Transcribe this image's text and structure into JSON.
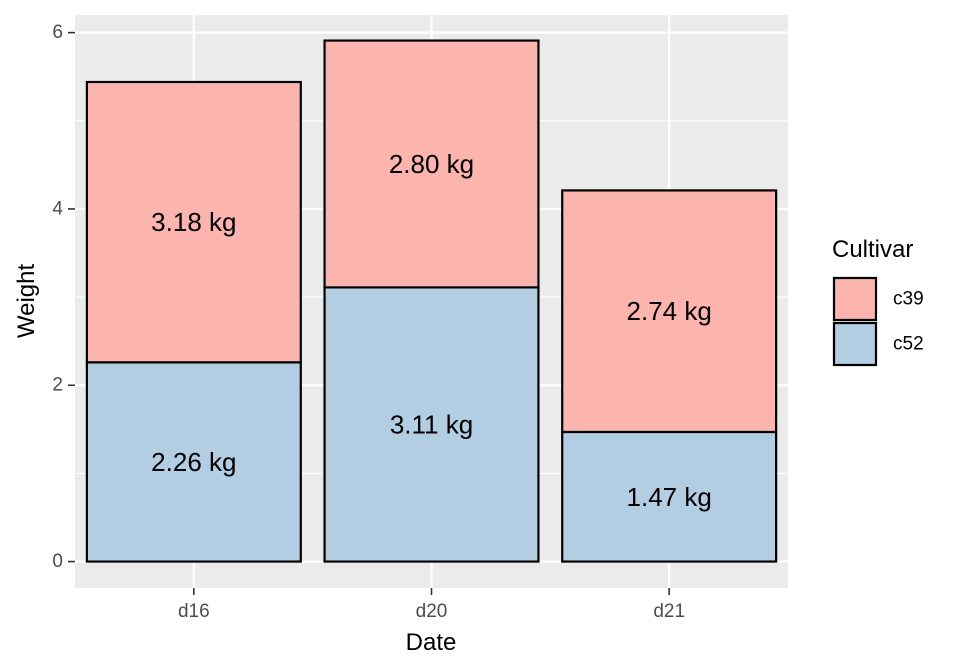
{
  "chart_data": {
    "type": "bar",
    "stacked": true,
    "categories": [
      "d16",
      "d20",
      "d21"
    ],
    "series": [
      {
        "name": "c52",
        "values": [
          2.26,
          3.11,
          1.47
        ],
        "labels": [
          "2.26 kg",
          "3.11 kg",
          "1.47 kg"
        ],
        "color": "#B3CDE3"
      },
      {
        "name": "c39",
        "values": [
          3.18,
          2.8,
          2.74
        ],
        "labels": [
          "3.18 kg",
          "2.80 kg",
          "2.74 kg"
        ],
        "color": "#FBB4AE"
      }
    ],
    "xlabel": "Date",
    "ylabel": "Weight",
    "ylim": [
      -0.3,
      6.2
    ],
    "yticks": [
      0,
      2,
      4,
      6
    ],
    "yticks_minor": [
      1,
      3,
      5
    ],
    "grid": true,
    "legend": {
      "title": "Cultivar",
      "position": "right",
      "entries": [
        "c39",
        "c52"
      ]
    },
    "colors": {
      "panel": "#EBEBEB",
      "grid": "#FFFFFF",
      "bar_outline": "#000000"
    }
  }
}
